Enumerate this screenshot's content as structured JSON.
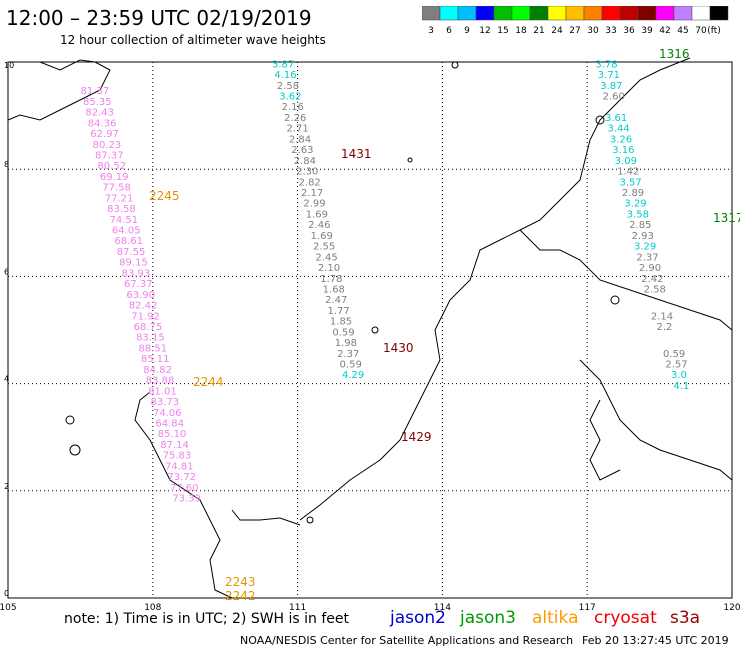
{
  "header": {
    "title": "12:00 – 23:59 UTC 02/19/2019",
    "subtitle": "12 hour collection of altimeter wave heights"
  },
  "colorbar": {
    "labels": [
      "3",
      "6",
      "9",
      "12",
      "15",
      "18",
      "21",
      "24",
      "27",
      "30",
      "33",
      "36",
      "39",
      "42",
      "45",
      "70",
      "(ft)"
    ],
    "colors": [
      "#7f7f7f",
      "#00ffff",
      "#00bfff",
      "#0000ff",
      "#00c000",
      "#00ff00",
      "#008000",
      "#ffff00",
      "#ffbf00",
      "#ff8000",
      "#ff0000",
      "#bf0000",
      "#800000",
      "#ff00ff",
      "#bf80ff",
      "#ffffff",
      "#000000"
    ]
  },
  "footer": {
    "note": "note: 1) Time is in UTC; 2) SWH is in feet",
    "credit": "NOAA/NESDIS Center for Satellite Applications and Research",
    "timestamp": "Feb 20 13:27:45 UTC 2019",
    "satellites": [
      {
        "name": "jason2",
        "color": "#0000cc"
      },
      {
        "name": "jason3",
        "color": "#009900"
      },
      {
        "name": "altika",
        "color": "#ff9900"
      },
      {
        "name": "cryosat",
        "color": "#ee0000"
      },
      {
        "name": "s3a",
        "color": "#990000"
      }
    ]
  },
  "chart_data": {
    "type": "scatter",
    "title": "12:00 – 23:59 UTC 02/19/2019",
    "xlim": [
      105,
      120
    ],
    "ylim": [
      0,
      10
    ],
    "x_ticks": [
      "105",
      "108",
      "111",
      "114",
      "117",
      "120"
    ],
    "y_ticks": [
      "0",
      "2",
      "4",
      "6",
      "8",
      "10"
    ],
    "grid": true,
    "passes": [
      {
        "name": "2242",
        "time_label_y": 0.0,
        "color": "#e69500"
      },
      {
        "name": "2243",
        "time_label_y": 0.3,
        "color": "#e69500"
      },
      {
        "name": "2244",
        "time_label_y": 4.0,
        "color": "#e69500"
      },
      {
        "name": "2245",
        "time_label_y": 7.3,
        "color": "#e69500"
      },
      {
        "name": "1429",
        "time_label_y": 2.9,
        "color": "#800000"
      },
      {
        "name": "1430",
        "time_label_y": 4.6,
        "color": "#800000"
      },
      {
        "name": "1431",
        "time_label_y": 8.2,
        "color": "#800000"
      },
      {
        "name": "1316",
        "time_label_y": 10.0,
        "color": "#008000"
      },
      {
        "name": "1317",
        "time_label_y": 6.9,
        "color": "#008000"
      }
    ],
    "series": [
      {
        "name": "altika",
        "color": "#ee82ee",
        "points": [
          {
            "x": 106.8,
            "y": 9.4,
            "v": "81.37"
          },
          {
            "x": 106.85,
            "y": 9.2,
            "v": "85.35"
          },
          {
            "x": 106.9,
            "y": 9.0,
            "v": "82.43"
          },
          {
            "x": 106.95,
            "y": 8.8,
            "v": "84.36"
          },
          {
            "x": 107.0,
            "y": 8.6,
            "v": "62.97"
          },
          {
            "x": 107.05,
            "y": 8.4,
            "v": "80.23"
          },
          {
            "x": 107.1,
            "y": 8.2,
            "v": "87.37"
          },
          {
            "x": 107.15,
            "y": 8.0,
            "v": "80.52"
          },
          {
            "x": 107.2,
            "y": 7.8,
            "v": "69.19"
          },
          {
            "x": 107.25,
            "y": 7.6,
            "v": "77.58"
          },
          {
            "x": 107.3,
            "y": 7.4,
            "v": "77.21"
          },
          {
            "x": 107.35,
            "y": 7.2,
            "v": "83.58"
          },
          {
            "x": 107.4,
            "y": 7.0,
            "v": "74.51"
          },
          {
            "x": 107.45,
            "y": 6.8,
            "v": "64.05"
          },
          {
            "x": 107.5,
            "y": 6.6,
            "v": "68.61"
          },
          {
            "x": 107.55,
            "y": 6.4,
            "v": "87.55"
          },
          {
            "x": 107.6,
            "y": 6.2,
            "v": "89.15"
          },
          {
            "x": 107.65,
            "y": 6.0,
            "v": "83.93"
          },
          {
            "x": 107.7,
            "y": 5.8,
            "v": "67.37"
          },
          {
            "x": 107.75,
            "y": 5.6,
            "v": "63.90"
          },
          {
            "x": 107.8,
            "y": 5.4,
            "v": "82.42"
          },
          {
            "x": 107.85,
            "y": 5.2,
            "v": "71.92"
          },
          {
            "x": 107.9,
            "y": 5.0,
            "v": "68.75"
          },
          {
            "x": 107.95,
            "y": 4.8,
            "v": "83.15"
          },
          {
            "x": 108.0,
            "y": 4.6,
            "v": "88.51"
          },
          {
            "x": 108.05,
            "y": 4.4,
            "v": "85.11"
          },
          {
            "x": 108.1,
            "y": 4.2,
            "v": "84.82"
          },
          {
            "x": 108.15,
            "y": 4.0,
            "v": "83.88"
          },
          {
            "x": 108.2,
            "y": 3.8,
            "v": "81.01"
          },
          {
            "x": 108.25,
            "y": 3.6,
            "v": "83.73"
          },
          {
            "x": 108.3,
            "y": 3.4,
            "v": "74.06"
          },
          {
            "x": 108.35,
            "y": 3.2,
            "v": "64.84"
          },
          {
            "x": 108.4,
            "y": 3.0,
            "v": "85.10"
          },
          {
            "x": 108.45,
            "y": 2.8,
            "v": "87.14"
          },
          {
            "x": 108.5,
            "y": 2.6,
            "v": "75.83"
          },
          {
            "x": 108.55,
            "y": 2.4,
            "v": "74.81"
          },
          {
            "x": 108.6,
            "y": 2.2,
            "v": "73.72"
          },
          {
            "x": 108.65,
            "y": 2.0,
            "v": "77.60"
          },
          {
            "x": 108.7,
            "y": 1.8,
            "v": "73.39"
          }
        ]
      },
      {
        "name": "cryosat",
        "color": "#7f7f7f",
        "points": [
          {
            "x": 110.7,
            "y": 9.9,
            "v": "3.87"
          },
          {
            "x": 110.75,
            "y": 9.7,
            "v": "4.16"
          },
          {
            "x": 110.8,
            "y": 9.5,
            "v": "2.58"
          },
          {
            "x": 110.85,
            "y": 9.3,
            "v": "3.62"
          },
          {
            "x": 110.9,
            "y": 9.1,
            "v": "2.16"
          },
          {
            "x": 110.95,
            "y": 8.9,
            "v": "2.26"
          },
          {
            "x": 111.0,
            "y": 8.7,
            "v": "2.71"
          },
          {
            "x": 111.05,
            "y": 8.5,
            "v": "2.84"
          },
          {
            "x": 111.1,
            "y": 8.3,
            "v": "2.63"
          },
          {
            "x": 111.15,
            "y": 8.1,
            "v": "2.84"
          },
          {
            "x": 111.2,
            "y": 7.9,
            "v": "2.30"
          },
          {
            "x": 111.25,
            "y": 7.7,
            "v": "2.82"
          },
          {
            "x": 111.3,
            "y": 7.5,
            "v": "2.17"
          },
          {
            "x": 111.35,
            "y": 7.3,
            "v": "2.99"
          },
          {
            "x": 111.4,
            "y": 7.1,
            "v": "1.69"
          },
          {
            "x": 111.45,
            "y": 6.9,
            "v": "2.46"
          },
          {
            "x": 111.5,
            "y": 6.7,
            "v": "1.69"
          },
          {
            "x": 111.55,
            "y": 6.5,
            "v": "2.55"
          },
          {
            "x": 111.6,
            "y": 6.3,
            "v": "2.45"
          },
          {
            "x": 111.65,
            "y": 6.1,
            "v": "2.10"
          },
          {
            "x": 111.7,
            "y": 5.9,
            "v": "1.78"
          },
          {
            "x": 111.75,
            "y": 5.7,
            "v": "1.68"
          },
          {
            "x": 111.8,
            "y": 5.5,
            "v": "2.47"
          },
          {
            "x": 111.85,
            "y": 5.3,
            "v": "1.77"
          },
          {
            "x": 111.9,
            "y": 5.1,
            "v": "1.85"
          },
          {
            "x": 111.95,
            "y": 4.9,
            "v": "0.59"
          },
          {
            "x": 112.0,
            "y": 4.7,
            "v": "1.98"
          },
          {
            "x": 112.05,
            "y": 4.5,
            "v": "2.37"
          },
          {
            "x": 112.1,
            "y": 4.3,
            "v": "0.59"
          },
          {
            "x": 112.15,
            "y": 4.1,
            "v": "4.29"
          }
        ]
      },
      {
        "name": "s3a",
        "color": "#7f7f7f",
        "points": [
          {
            "x": 117.4,
            "y": 9.9,
            "v": "3.78"
          },
          {
            "x": 117.45,
            "y": 9.7,
            "v": "3.71"
          },
          {
            "x": 117.5,
            "y": 9.5,
            "v": "3.87"
          },
          {
            "x": 117.55,
            "y": 9.3,
            "v": "2.60"
          },
          {
            "x": 117.6,
            "y": 8.9,
            "v": "3.61"
          },
          {
            "x": 117.65,
            "y": 8.7,
            "v": "3.44"
          },
          {
            "x": 117.7,
            "y": 8.5,
            "v": "3.26"
          },
          {
            "x": 117.75,
            "y": 8.3,
            "v": "3.16"
          },
          {
            "x": 117.8,
            "y": 8.1,
            "v": "3.09"
          },
          {
            "x": 117.85,
            "y": 7.9,
            "v": "1.42"
          },
          {
            "x": 117.9,
            "y": 7.7,
            "v": "3.57"
          },
          {
            "x": 117.95,
            "y": 7.5,
            "v": "2.89"
          },
          {
            "x": 118.0,
            "y": 7.3,
            "v": "3.29"
          },
          {
            "x": 118.05,
            "y": 7.1,
            "v": "3.58"
          },
          {
            "x": 118.1,
            "y": 6.9,
            "v": "2.85"
          },
          {
            "x": 118.15,
            "y": 6.7,
            "v": "2.93"
          },
          {
            "x": 118.2,
            "y": 6.5,
            "v": "3.29"
          },
          {
            "x": 118.25,
            "y": 6.3,
            "v": "2.37"
          },
          {
            "x": 118.3,
            "y": 6.1,
            "v": "2.90"
          },
          {
            "x": 118.35,
            "y": 5.9,
            "v": "2.42"
          },
          {
            "x": 118.4,
            "y": 5.7,
            "v": "2.58"
          },
          {
            "x": 118.55,
            "y": 5.2,
            "v": "2.14"
          },
          {
            "x": 118.6,
            "y": 5.0,
            "v": "2.2"
          },
          {
            "x": 118.8,
            "y": 4.5,
            "v": "0.59"
          },
          {
            "x": 118.85,
            "y": 4.3,
            "v": "2.57"
          },
          {
            "x": 118.9,
            "y": 4.1,
            "v": "3.0"
          },
          {
            "x": 118.95,
            "y": 3.9,
            "v": "4.1"
          }
        ]
      }
    ]
  }
}
